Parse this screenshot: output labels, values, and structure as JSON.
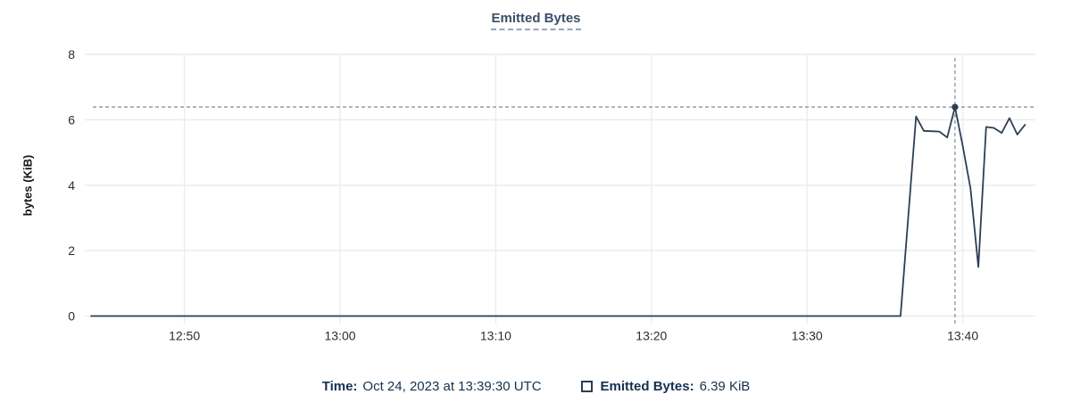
{
  "title": {
    "text": "Emitted Bytes"
  },
  "y_axis": {
    "label": "bytes (KiB)",
    "ticks": [
      "0",
      "2",
      "4",
      "6",
      "8"
    ]
  },
  "x_axis": {
    "ticks": [
      "12:50",
      "13:00",
      "13:10",
      "13:20",
      "13:30",
      "13:40"
    ]
  },
  "footer": {
    "time_label": "Time:",
    "time_value": "Oct 24, 2023 at 13:39:30 UTC",
    "series_label": "Emitted Bytes:",
    "series_value": "6.39 KiB"
  },
  "colors": {
    "line": "#2d3e54",
    "title": "#3c4e68",
    "legend_text": "#14324f",
    "grid": "#ececec",
    "crosshair": "#8296ab",
    "tick_text": "#2e2e2e"
  },
  "chart_data": {
    "type": "line",
    "title": "Emitted Bytes",
    "xlabel": "",
    "ylabel": "bytes (KiB)",
    "ylim": [
      0,
      8
    ],
    "y_ticks": [
      0,
      2,
      4,
      6,
      8
    ],
    "x_ticks": [
      "12:50",
      "13:00",
      "13:10",
      "13:20",
      "13:30",
      "13:40"
    ],
    "x_range": [
      "12:43:36",
      "13:44:40"
    ],
    "grid": true,
    "legend_position": "bottom",
    "series": [
      {
        "name": "Emitted Bytes",
        "unit": "KiB",
        "points": [
          [
            "12:44:00",
            0
          ],
          [
            "13:36:00",
            0
          ],
          [
            "13:37:00",
            6.1
          ],
          [
            "13:37:30",
            5.66
          ],
          [
            "13:38:00",
            5.65
          ],
          [
            "13:38:30",
            5.64
          ],
          [
            "13:39:00",
            5.46
          ],
          [
            "13:39:30",
            6.39
          ],
          [
            "13:40:00",
            5.2
          ],
          [
            "13:40:30",
            3.9
          ],
          [
            "13:41:00",
            1.5
          ],
          [
            "13:41:30",
            5.78
          ],
          [
            "13:42:00",
            5.75
          ],
          [
            "13:42:30",
            5.6
          ],
          [
            "13:43:00",
            6.05
          ],
          [
            "13:43:30",
            5.55
          ],
          [
            "13:44:00",
            5.85
          ]
        ]
      }
    ],
    "crosshair": {
      "time": "13:39:30",
      "value": 6.39,
      "value_label": "6.39 KiB",
      "time_label": "Oct 24, 2023 at 13:39:30 UTC"
    }
  }
}
